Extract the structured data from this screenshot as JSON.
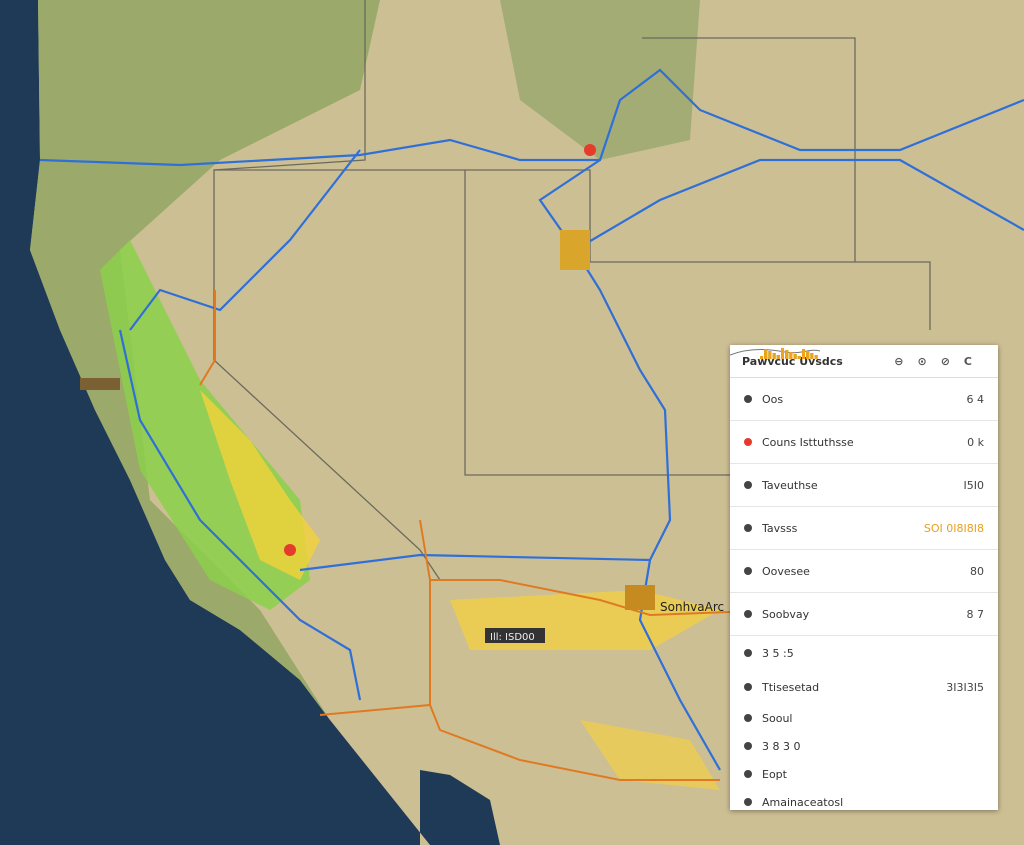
{
  "panel": {
    "title": "Pawvcuc Uvsdcs",
    "rows": [
      {
        "label": "Oos",
        "value": "6 4"
      },
      {
        "label": "Couns Isttuthsse",
        "value": "0 k"
      },
      {
        "label": "Taveuthse",
        "value": "I5I0"
      },
      {
        "label": "Tavsss",
        "value": "SOI 0I8I8I8"
      },
      {
        "label": "Oovesee",
        "value": "80"
      },
      {
        "label": "Soobvay",
        "value": "8 7"
      },
      {
        "label": "3 5 :5",
        "value": ""
      },
      {
        "label": "Ttisesetad",
        "value": "3I3I3I5"
      },
      {
        "label": "Sooul",
        "value": ""
      },
      {
        "label": "3 8 3 0",
        "value": ""
      },
      {
        "label": "Eopt",
        "value": ""
      },
      {
        "label": "Amainaceatosl",
        "value": ""
      }
    ]
  },
  "map": {
    "labels": [
      "SonhvaArc",
      "Ill: ISD00"
    ]
  }
}
